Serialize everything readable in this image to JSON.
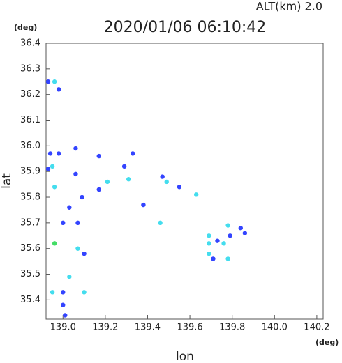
{
  "chart_data": {
    "type": "scatter",
    "title": "2020/01/06 06:10:42",
    "altitude_label": "ALT(km)  2.0",
    "y_unit": "(deg)",
    "x_unit": "(deg)",
    "xlabel": "lon",
    "ylabel": "lat",
    "xlim": [
      138.92,
      140.23
    ],
    "ylim": [
      35.325,
      36.4
    ],
    "xticks": [
      {
        "value": 139.0,
        "label": "139.0"
      },
      139.2,
      139.4,
      139.6,
      139.8,
      {
        "value": 140.0,
        "label": "140.0"
      },
      140.2
    ],
    "yticks": [
      35.4,
      35.5,
      35.6,
      35.7,
      35.8,
      35.9,
      {
        "value": 36.0,
        "label": "36.0"
      },
      36.1,
      36.2,
      36.3,
      36.4
    ],
    "x": [
      138.93,
      138.96,
      138.98,
      138.94,
      138.98,
      138.93,
      138.95,
      138.96,
      138.96,
      139.0,
      139.07,
      139.1,
      139.03,
      138.95,
      139.0,
      139.1,
      139.0,
      139.01,
      139.06,
      139.06,
      139.09,
      139.17,
      139.17,
      139.21,
      139.29,
      139.33,
      139.31,
      139.38,
      139.47,
      139.49,
      139.46,
      139.55,
      139.63,
      139.69,
      139.69,
      139.69,
      139.73,
      139.76,
      139.78,
      139.79,
      139.84,
      139.86,
      139.78,
      139.71,
      139.07,
      139.03
    ],
    "y": [
      36.25,
      36.25,
      36.22,
      35.97,
      35.97,
      35.91,
      35.92,
      35.84,
      35.62,
      35.7,
      35.6,
      35.58,
      35.49,
      35.43,
      35.43,
      35.43,
      35.38,
      35.34,
      35.99,
      35.89,
      35.8,
      35.83,
      35.96,
      35.86,
      35.92,
      35.97,
      35.87,
      35.77,
      35.88,
      35.86,
      35.7,
      35.84,
      35.81,
      35.65,
      35.62,
      35.58,
      35.63,
      35.62,
      35.69,
      35.65,
      35.68,
      35.66,
      35.56,
      35.56,
      35.7,
      35.76
    ],
    "colors": [
      "#3344ff",
      "#44ddee",
      "#3344ff",
      "#3344ff",
      "#3344ff",
      "#3344ff",
      "#44ddee",
      "#44ddee",
      "#44dd66",
      "#3344ff",
      "#44ddee",
      "#3344ff",
      "#44ddee",
      "#44ddee",
      "#3344ff",
      "#44ddee",
      "#3344ff",
      "#3344ff",
      "#3344ff",
      "#3344ff",
      "#3344ff",
      "#3344ff",
      "#3344ff",
      "#44ddee",
      "#3344ff",
      "#3344ff",
      "#44ddee",
      "#3344ff",
      "#3344ff",
      "#44ddee",
      "#44ddee",
      "#3344ff",
      "#44ddee",
      "#44ddee",
      "#44ddee",
      "#44ddee",
      "#3344ff",
      "#44ddee",
      "#44ddee",
      "#3344ff",
      "#3344ff",
      "#3344ff",
      "#44ddee",
      "#3344ff",
      "#3344ff",
      "#3344ff"
    ]
  }
}
